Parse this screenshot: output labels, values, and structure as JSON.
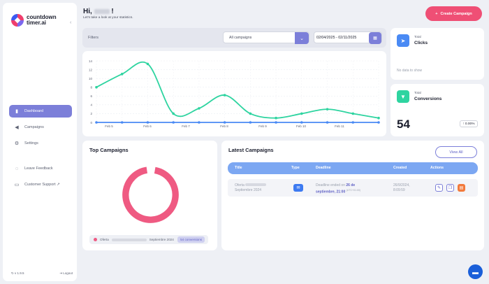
{
  "brand": {
    "name": "countdown timer.ai",
    "collapse_icon": "chevron-left-icon"
  },
  "sidebar": {
    "items": [
      {
        "label": "Dashboard",
        "icon": "bar-chart-icon",
        "active": true
      },
      {
        "label": "Campaigns",
        "icon": "megaphone-icon",
        "active": false
      },
      {
        "label": "Settings",
        "icon": "gear-icon",
        "active": false
      }
    ],
    "secondary": [
      {
        "label": "Leave Feedback",
        "icon": "lightbulb-icon"
      },
      {
        "label": "Customer Support ↗",
        "icon": "book-icon"
      }
    ],
    "version": "v 1.9.5",
    "logout": "Logout"
  },
  "header": {
    "greeting_prefix": "Hi,",
    "greeting_suffix": "!",
    "subtitle": "Let's take a look at your statistics.",
    "create_label": "Create Campaign"
  },
  "filters": {
    "label": "Filters",
    "campaign_select": "All campaigns",
    "date_range": "02/04/2025 - 02/11/2025"
  },
  "chart_data": {
    "type": "line",
    "title": "",
    "xlabel": "",
    "ylabel": "",
    "ylim": [
      0,
      14
    ],
    "yticks": [
      0,
      2,
      4,
      6,
      8,
      10,
      12,
      14
    ],
    "x_tick_labels": [
      "Feb 5",
      "Feb 6",
      "Feb 7",
      "Feb 8",
      "Feb 9",
      "Feb 10",
      "Feb 11"
    ],
    "series": [
      {
        "name": "",
        "color": "#2ed4a0",
        "values": [
          8,
          11,
          13.3,
          2,
          3.2,
          6.2,
          2,
          1,
          2,
          3,
          2,
          1
        ]
      },
      {
        "name": "",
        "color": "#4a8af4",
        "values": [
          0,
          0,
          0,
          0,
          0,
          0,
          0,
          0,
          0,
          0,
          0,
          0
        ]
      }
    ],
    "grid": true
  },
  "stats": {
    "clicks": {
      "label": "Total",
      "name": "Clicks",
      "empty": "No data to show",
      "color": "#4a8af4",
      "icon": "cursor-icon"
    },
    "conversions": {
      "label": "Total",
      "name": "Conversions",
      "value": "54",
      "change": "0.00%",
      "color": "#2ed4a0",
      "icon": "funnel-icon"
    }
  },
  "top_campaigns": {
    "title": "Top Campaigns",
    "donut_color": "#ef5a82",
    "legend": {
      "name_start": "Oferta",
      "name_end": "Septiembre 2024",
      "conversions": "54 conversions"
    }
  },
  "latest": {
    "title": "Latest Campaigns",
    "view_all": "View All",
    "columns": [
      "Title",
      "Type",
      "Deadline",
      "Created",
      "Actions"
    ],
    "rows": [
      {
        "title_line1": "Oferta",
        "title_line2": "Septiembre 2024",
        "type_icon": "email-icon",
        "deadline_prefix": "Deadline ended on",
        "deadline_date": "26 de septiembre, 21:00",
        "deadline_tz": "(UTC+01:00)",
        "created_date": "26/9/2024,",
        "created_time": "8:09:59"
      }
    ]
  }
}
